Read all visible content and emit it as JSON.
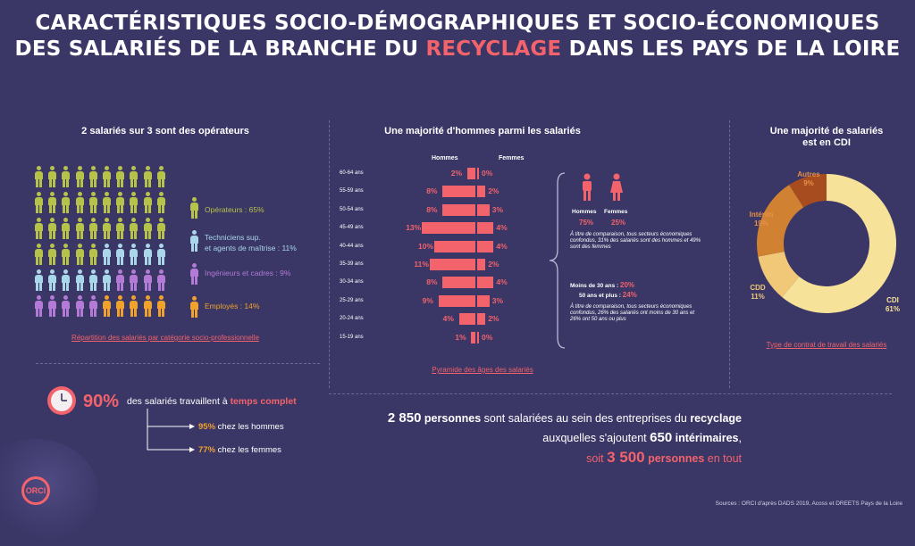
{
  "title": {
    "line1": "CARACTÉRISTIQUES SOCIO-DÉMOGRAPHIQUES ET SOCIO-ÉCONOMIQUES",
    "line2_pre": "DES SALARIÉS DE LA BRANCHE DU ",
    "line2_highlight": "RECYCLAGE",
    "line2_post": " DANS LES PAYS DE LA LOIRE"
  },
  "colors": {
    "background": "#3a3666",
    "accent": "#f2636b",
    "operateurs": "#b7c24b",
    "techniciens": "#a9d6e8",
    "ingenieurs": "#b37ad6",
    "employes": "#f0a22c"
  },
  "categories": {
    "title": "2 salariés sur 3 sont des opérateurs",
    "legend": [
      {
        "label": "Opérateurs : 65%",
        "color": "#b7c24b"
      },
      {
        "label": "Techniciens sup.",
        "label2": "et agents de maîtrise : 11%",
        "color": "#a9d6e8"
      },
      {
        "label": "Ingénieurs et cadres : 9%",
        "color": "#b37ad6"
      },
      {
        "label": "Employés : 14%",
        "color": "#f0a22c"
      }
    ],
    "link": "Répartition des salariés par catégorie socio-professionnelle"
  },
  "pyramid": {
    "title": "Une majorité d'hommes parmi les salariés",
    "hommes_label": "Hommes",
    "femmes_label": "Femmes",
    "rows": [
      {
        "age": "60-64 ans",
        "h": "2%",
        "f": "0%",
        "hv": 2,
        "fv": 0
      },
      {
        "age": "55-59 ans",
        "h": "8%",
        "f": "2%",
        "hv": 8,
        "fv": 2
      },
      {
        "age": "50-54 ans",
        "h": "8%",
        "f": "3%",
        "hv": 8,
        "fv": 3
      },
      {
        "age": "45-49 ans",
        "h": "13%",
        "f": "4%",
        "hv": 13,
        "fv": 4
      },
      {
        "age": "40-44 ans",
        "h": "10%",
        "f": "4%",
        "hv": 10,
        "fv": 4
      },
      {
        "age": "35-39 ans",
        "h": "11%",
        "f": "2%",
        "hv": 11,
        "fv": 2
      },
      {
        "age": "30-34 ans",
        "h": "8%",
        "f": "4%",
        "hv": 8,
        "fv": 4
      },
      {
        "age": "25-29 ans",
        "h": "9%",
        "f": "3%",
        "hv": 9,
        "fv": 3
      },
      {
        "age": "20-24 ans",
        "h": "4%",
        "f": "2%",
        "hv": 4,
        "fv": 2
      },
      {
        "age": "15-19 ans",
        "h": "1%",
        "f": "0%",
        "hv": 1,
        "fv": 0
      }
    ],
    "link": "Pyramide des âges des salariés",
    "side": {
      "hommes": "Hommes",
      "femmes": "Femmes",
      "hommes_pct": "75%",
      "femmes_pct": "25%",
      "note1": "À titre de comparaison, tous secteurs économiques confondus, 31% des salariés sont des hommes et 49% sont des femmes",
      "moins30_label": "Moins de 30 ans :",
      "moins30": "20%",
      "plus50_label": "50 ans et plus :",
      "plus50": "24%",
      "note2": "À titre de comparaison, tous secteurs économiques confondus, 26% des salariés ont moins de 30 ans et 26% ont 50 ans ou plus"
    }
  },
  "contracts": {
    "title1": "Une majorité de salariés",
    "title2": "est en CDI",
    "slices": [
      {
        "label": "CDI",
        "pct": "61%",
        "value": 61,
        "color": "#f7e29a"
      },
      {
        "label": "CDD",
        "pct": "11%",
        "value": 11,
        "color": "#f0c878"
      },
      {
        "label": "Intérim",
        "pct": "19%",
        "value": 19,
        "color": "#d08232"
      },
      {
        "label": "Autres",
        "pct": "9%",
        "value": 9,
        "color": "#a64c1e"
      }
    ],
    "link": "Type de contrat de travail des salariés"
  },
  "time": {
    "pct": "90%",
    "text_pre": "des salariés travaillent à ",
    "text_bold": "temps complet",
    "hommes_pct": "95%",
    "hommes_label": " chez les hommes",
    "femmes_pct": "77%",
    "femmes_label": " chez les femmes"
  },
  "totals": {
    "n1": "2 850",
    "l1a": " personnes",
    "l1b": " sont salariées au sein des entreprises du ",
    "l1c": "recyclage",
    "l2a": "auxquelles s'ajoutent ",
    "n2": "650",
    "l2b": " intérimaires",
    "l3a": "soit ",
    "n3": "3 500",
    "l3b": " personnes",
    "l3c": " en tout"
  },
  "logo": "ORCI",
  "source": "Sources : ORCI d'après DADS 2019, Acoss et DREETS Pays de la Loire"
}
